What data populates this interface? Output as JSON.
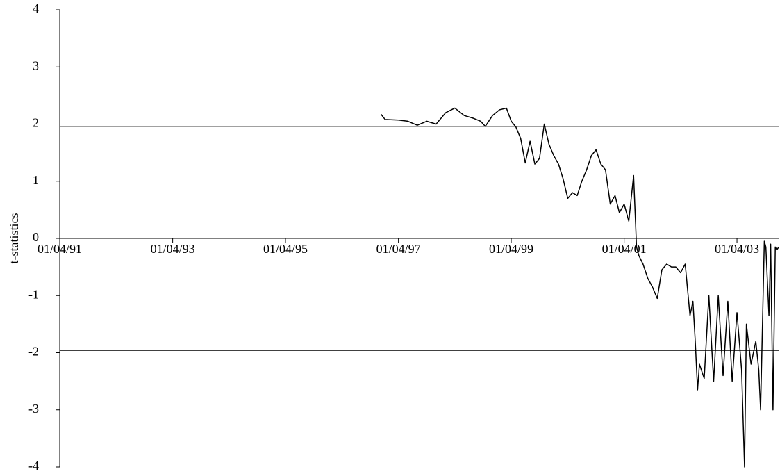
{
  "chart_data": {
    "type": "line",
    "y_label": "t-statistics",
    "x": [
      "1996-12-10",
      "1997-01-05",
      "1997-04-01",
      "1997-06-01",
      "1997-08-01",
      "1997-10-01",
      "1997-12-01",
      "1998-02-01",
      "1998-04-01",
      "1998-06-01",
      "1998-08-01",
      "1998-09-15",
      "1998-10-15",
      "1998-12-01",
      "1999-01-15",
      "1999-03-01",
      "1999-04-01",
      "1999-05-01",
      "1999-06-01",
      "1999-07-01",
      "1999-08-01",
      "1999-09-01",
      "1999-10-01",
      "1999-11-01",
      "1999-12-01",
      "2000-01-01",
      "2000-02-01",
      "2000-03-01",
      "2000-04-01",
      "2000-05-01",
      "2000-06-01",
      "2000-07-01",
      "2000-08-01",
      "2000-09-01",
      "2000-10-01",
      "2000-11-01",
      "2000-12-01",
      "2001-01-01",
      "2001-02-01",
      "2001-03-01",
      "2001-04-01",
      "2001-05-01",
      "2001-06-01",
      "2001-06-20",
      "2001-07-05",
      "2001-08-01",
      "2001-09-01",
      "2001-10-01",
      "2001-11-01",
      "2001-12-01",
      "2002-01-01",
      "2002-02-01",
      "2002-03-01",
      "2002-04-01",
      "2002-05-01",
      "2002-06-01",
      "2002-06-20",
      "2002-07-05",
      "2002-07-20",
      "2002-08-01",
      "2002-09-01",
      "2002-10-01",
      "2002-11-01",
      "2002-12-01",
      "2003-01-01",
      "2003-02-01",
      "2003-03-01",
      "2003-04-01",
      "2003-05-01",
      "2003-05-20",
      "2003-06-01",
      "2003-07-01",
      "2003-08-01",
      "2003-08-20",
      "2003-09-01",
      "2003-09-25",
      "2003-10-05",
      "2003-10-25",
      "2003-11-05",
      "2003-11-20",
      "2003-12-05",
      "2003-12-15",
      "2003-12-28"
    ],
    "series": [
      {
        "name": "t-statistics",
        "color": "#000000",
        "values": [
          2.17,
          2.08,
          2.07,
          2.05,
          1.98,
          2.05,
          2.0,
          2.2,
          2.28,
          2.15,
          2.1,
          2.05,
          1.96,
          2.15,
          2.25,
          2.28,
          2.05,
          1.95,
          1.75,
          1.32,
          1.7,
          1.3,
          1.4,
          2.0,
          1.65,
          1.45,
          1.3,
          1.05,
          0.7,
          0.8,
          0.75,
          1.0,
          1.2,
          1.45,
          1.55,
          1.3,
          1.2,
          0.6,
          0.75,
          0.45,
          0.6,
          0.3,
          1.1,
          -0.15,
          -0.3,
          -0.45,
          -0.7,
          -0.85,
          -1.05,
          -0.55,
          -0.45,
          -0.5,
          -0.5,
          -0.6,
          -0.45,
          -1.35,
          -1.1,
          -1.8,
          -2.65,
          -2.2,
          -2.45,
          -1.0,
          -2.5,
          -1.0,
          -2.4,
          -1.1,
          -2.5,
          -1.3,
          -2.3,
          -4.0,
          -1.5,
          -2.2,
          -1.8,
          -2.3,
          -3.0,
          -0.05,
          -0.15,
          -1.35,
          -0.1,
          -3.0,
          -0.15,
          -0.2,
          -0.15
        ]
      }
    ],
    "hlines": [
      1.96,
      -1.96
    ],
    "xlim": [
      "1991-04-01",
      "2003-12-31"
    ],
    "xticks": [
      {
        "value": "1991-04-01",
        "label": "01/04/91"
      },
      {
        "value": "1993-04-01",
        "label": "01/04/93"
      },
      {
        "value": "1995-04-01",
        "label": "01/04/95"
      },
      {
        "value": "1997-04-01",
        "label": "01/04/97"
      },
      {
        "value": "1999-04-01",
        "label": "01/04/99"
      },
      {
        "value": "2001-04-01",
        "label": "01/04/01"
      },
      {
        "value": "2003-04-01",
        "label": "01/04/03"
      }
    ],
    "ylim": [
      -4,
      4
    ],
    "yticks": [
      4,
      3,
      2,
      1,
      0,
      -1,
      -2,
      -3,
      -4
    ]
  }
}
